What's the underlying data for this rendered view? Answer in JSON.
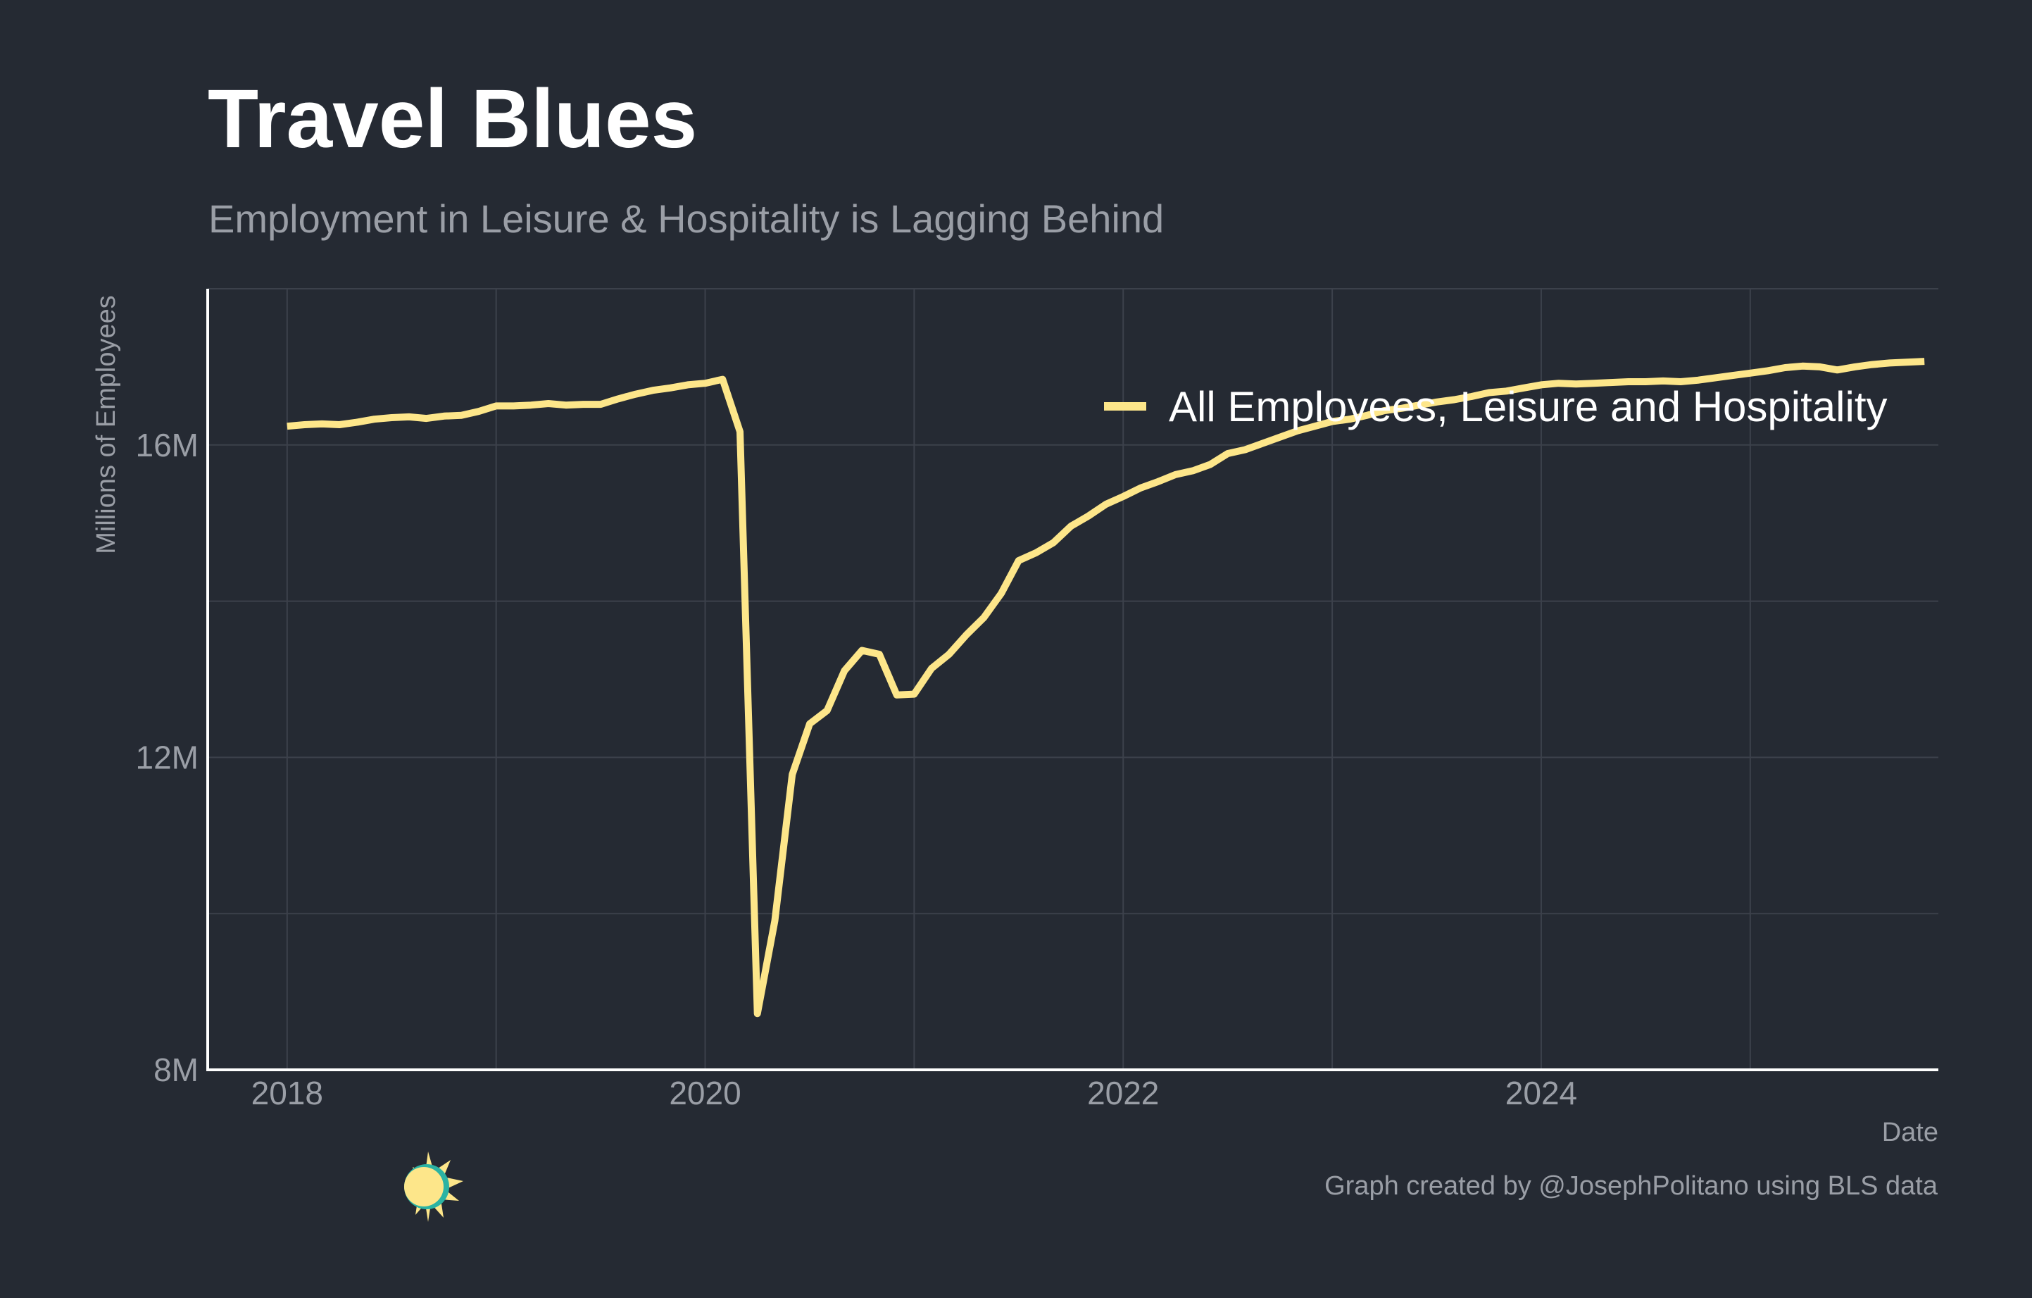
{
  "header": {
    "title": "Travel Blues",
    "subtitle": "Employment in Leisure & Hospitality is Lagging Behind"
  },
  "footer": {
    "caption": "Graph created by @JosephPolitano using BLS data"
  },
  "colors": {
    "background": "#252a33",
    "series": "#fde68a",
    "grid": "#3c414b",
    "axis": "#ffffff",
    "muted_text": "#9a9ea6"
  },
  "icons": {
    "logo": "sun-moon-logo-icon"
  },
  "chart_data": {
    "type": "line",
    "title": "Travel Blues",
    "subtitle": "Employment in Leisure & Hospitality is Lagging Behind",
    "xlabel": "Date",
    "ylabel": "Millions of Employees",
    "xlim": [
      2017.62,
      2025.9
    ],
    "ylim": [
      8,
      18
    ],
    "x_ticks": [
      2018,
      2020,
      2022,
      2024
    ],
    "x_tick_labels": [
      "2018",
      "2020",
      "2022",
      "2024"
    ],
    "y_ticks": [
      8,
      12,
      16
    ],
    "y_tick_labels": [
      "8M",
      "12M",
      "16M"
    ],
    "grid": true,
    "legend_position": "top-right",
    "series": [
      {
        "name": "All Employees, Leisure and Hospitality",
        "start": "2018-01",
        "frequency": "monthly",
        "values": [
          16.24,
          16.26,
          16.27,
          16.26,
          16.29,
          16.33,
          16.35,
          16.36,
          16.34,
          16.37,
          16.38,
          16.43,
          16.5,
          16.5,
          16.51,
          16.53,
          16.51,
          16.52,
          16.52,
          16.59,
          16.65,
          16.7,
          16.73,
          16.77,
          16.79,
          16.84,
          16.17,
          8.72,
          9.91,
          11.78,
          12.43,
          12.6,
          13.11,
          13.37,
          13.32,
          12.8,
          12.81,
          13.14,
          13.32,
          13.57,
          13.79,
          14.1,
          14.52,
          14.62,
          14.75,
          14.96,
          15.09,
          15.24,
          15.34,
          15.45,
          15.53,
          15.62,
          15.67,
          15.75,
          15.89,
          15.94,
          16.02,
          16.1,
          16.18,
          16.24,
          16.3,
          16.33,
          16.38,
          16.44,
          16.47,
          16.51,
          16.55,
          16.58,
          16.62,
          16.67,
          16.69,
          16.73,
          16.77,
          16.79,
          16.78,
          16.79,
          16.8,
          16.81,
          16.81,
          16.82,
          16.81,
          16.83,
          16.86,
          16.89,
          16.92,
          16.95,
          16.99,
          17.01,
          17.0,
          16.96,
          17.0,
          17.03,
          17.05,
          17.06,
          17.07
        ]
      }
    ]
  }
}
